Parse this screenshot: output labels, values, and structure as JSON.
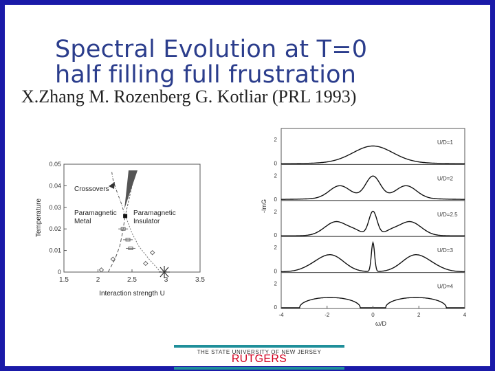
{
  "slide": {
    "title_line1": "Spectral Evolution at T=0",
    "title_line2": "half filling full frustration",
    "authors": "X.Zhang M. Rozenberg G. Kotliar (PRL 1993)",
    "footer_sub": "THE STATE UNIVERSITY OF NEW JERSEY",
    "footer_name": "RUTGERS",
    "colors": {
      "border": "#1a1aa8",
      "title": "#2b3d8c",
      "teal": "#1f8f9a",
      "rutgers_red": "#d2001f"
    }
  },
  "chart_data": [
    {
      "type": "line",
      "xlabel": "Interaction strength U",
      "ylabel": "Temperature",
      "xlim": [
        1.5,
        3.5
      ],
      "ylim": [
        0,
        0.05
      ],
      "xticks": [
        "1.5",
        "2",
        "2.5",
        "3",
        "3.5"
      ],
      "yticks": [
        "0",
        "0.01",
        "0.02",
        "0.03",
        "0.04",
        "0.05"
      ],
      "annotations": [
        "Crossovers",
        "Paramagnetic",
        "Metal",
        "Paramagnetic",
        "Insulator"
      ],
      "critical_point": {
        "U": 2.4,
        "T": 0.026
      },
      "end_point": {
        "U": 2.92,
        "T": 0
      },
      "series": [
        {
          "kind": "uc1",
          "points": [
            [
              2.15,
              0
            ],
            [
              2.25,
              0.006
            ],
            [
              2.32,
              0.012
            ],
            [
              2.36,
              0.018
            ],
            [
              2.39,
              0.024
            ],
            [
              2.4,
              0.026
            ]
          ]
        },
        {
          "kind": "uc2",
          "points": [
            [
              2.92,
              0
            ],
            [
              2.75,
              0.006
            ],
            [
              2.6,
              0.012
            ],
            [
              2.5,
              0.018
            ],
            [
              2.44,
              0.023
            ],
            [
              2.4,
              0.026
            ]
          ]
        },
        {
          "kind": "crossover_left",
          "points": [
            [
              2.4,
              0.026
            ],
            [
              2.34,
              0.032
            ],
            [
              2.27,
              0.038
            ],
            [
              2.22,
              0.043
            ],
            [
              2.2,
              0.047
            ]
          ]
        },
        {
          "kind": "crossover_right",
          "points": [
            [
              2.4,
              0.026
            ],
            [
              2.45,
              0.033
            ],
            [
              2.5,
              0.04
            ],
            [
              2.55,
              0.047
            ]
          ]
        }
      ],
      "markers_diamond": [
        [
          2.05,
          0.001
        ],
        [
          2.22,
          0.006
        ],
        [
          2.7,
          0.004
        ],
        [
          2.8,
          0.009
        ]
      ],
      "markers_square": [
        [
          2.37,
          0.02
        ],
        [
          2.44,
          0.015
        ],
        [
          2.48,
          0.011
        ]
      ]
    },
    {
      "type": "line",
      "xlabel": "ω/D",
      "ylabel": "-ImG",
      "xticks": [
        "-4",
        "-2",
        "0",
        "2",
        "4"
      ],
      "xlim": [
        -4,
        4
      ],
      "ylim": [
        0,
        2
      ],
      "panels": [
        {
          "label": "U/D=1",
          "yticks": [
            "2",
            "0"
          ]
        },
        {
          "label": "U/D=2",
          "yticks": [
            "2",
            "0"
          ]
        },
        {
          "label": "U/D=2.5",
          "yticks": [
            "2",
            "0"
          ]
        },
        {
          "label": "U/D=3",
          "yticks": [
            "2",
            "0"
          ]
        },
        {
          "label": "U/D=4",
          "yticks": [
            "2",
            "0"
          ]
        }
      ]
    }
  ]
}
